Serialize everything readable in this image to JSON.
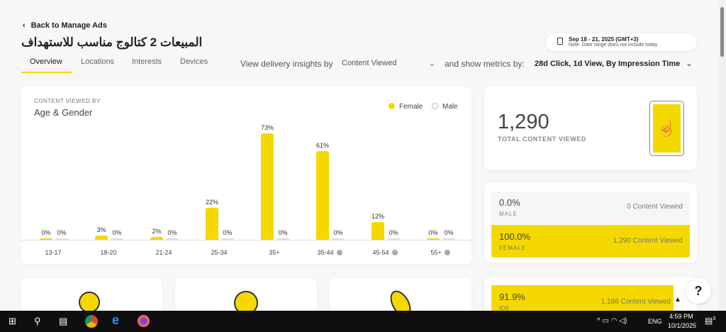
{
  "header": {
    "back_label": "Back to Manage Ads",
    "title": "المبيعات 2 كتالوج مناسب للاستهداف",
    "date_range": "Sep 18 - 21, 2025 (GMT+3)",
    "date_note": "Note: Date range does not include today"
  },
  "tabs": [
    {
      "label": "Overview",
      "active": true
    },
    {
      "label": "Locations"
    },
    {
      "label": "Interests"
    },
    {
      "label": "Devices"
    }
  ],
  "filters": {
    "insights_label": "View delivery insights by",
    "insights_value": "Content Viewed",
    "metrics_label": "and show metrics by:",
    "metrics_value": "28d Click, 1d View, By Impression Time"
  },
  "colors": {
    "accent": "#f5d800",
    "male": "#e0e0e0"
  },
  "chart_data": {
    "type": "bar",
    "overline": "CONTENT VIEWED BY",
    "title": "Age & Gender",
    "legend": [
      "Female",
      "Male"
    ],
    "legend_position": "top-right",
    "categories": [
      "13-17",
      "18-20",
      "21-24",
      "25-34",
      "35+",
      "35-44",
      "45-54",
      "55+"
    ],
    "series": [
      {
        "name": "Female",
        "values": [
          0,
          3,
          2,
          22,
          73,
          61,
          12,
          0
        ]
      },
      {
        "name": "Male",
        "values": [
          0,
          0,
          0,
          0,
          0,
          0,
          0,
          0
        ]
      }
    ],
    "info_icons": [
      false,
      false,
      false,
      false,
      false,
      true,
      true,
      true
    ],
    "ylim": [
      0,
      100
    ]
  },
  "total": {
    "value": "1,290",
    "label": "TOTAL CONTENT VIEWED"
  },
  "gender": [
    {
      "pct": "0.0%",
      "label": "MALE",
      "count": "0 Content Viewed",
      "fraction": 0
    },
    {
      "pct": "100.0%",
      "label": "FEMALE",
      "count": "1,290 Content Viewed",
      "fraction": 1
    }
  ],
  "platform": {
    "pct": "91.9%",
    "label": "IOS",
    "count": "1,186 Content Viewed",
    "fraction": 0.919
  },
  "taskbar": {
    "time": "4:59 PM",
    "date": "10/1/2025",
    "lang": "ENG",
    "notifications": "3"
  }
}
